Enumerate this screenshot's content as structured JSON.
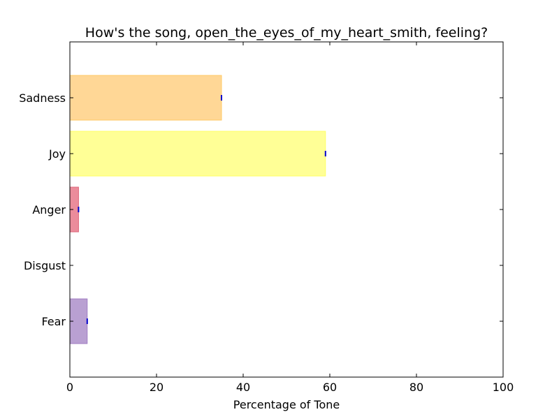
{
  "chart_data": {
    "type": "bar",
    "orientation": "horizontal",
    "title": "How's the song, open_the_eyes_of_my_heart_smith, feeling?",
    "xlabel": "Percentage of Tone",
    "ylabel": "",
    "xlim": [
      0,
      100
    ],
    "xticks": [
      "0",
      "20",
      "40",
      "60",
      "80",
      "100"
    ],
    "categories": [
      "Sadness",
      "Joy",
      "Anger",
      "Disgust",
      "Fear"
    ],
    "values": [
      35,
      59,
      2,
      0,
      4
    ],
    "colors": [
      "#ffd796",
      "#ffff96",
      "#eb8c9b",
      "#dcb4e6",
      "#b9a0d2"
    ],
    "edge_colors": [
      "#ffc864",
      "#ffff64",
      "#dc6478",
      "#c896d2",
      "#a07dc3"
    ],
    "error_marker_color": "#0000cc"
  }
}
